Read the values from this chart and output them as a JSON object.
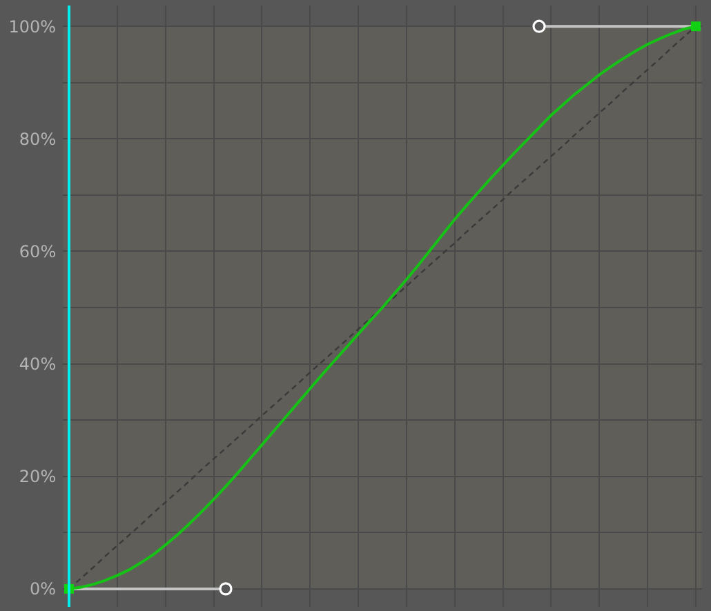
{
  "chart_data": {
    "type": "line",
    "categories": [
      null,
      null,
      null,
      null,
      null,
      null,
      null,
      null,
      null,
      null,
      null,
      null,
      null,
      null,
      null,
      null,
      null,
      null,
      null,
      null,
      null,
      null,
      null,
      null,
      null,
      null,
      null,
      null,
      null,
      null,
      null,
      null,
      null,
      null,
      null,
      null,
      null,
      null,
      null,
      null,
      null,
      null,
      null,
      null,
      null,
      null,
      null,
      null,
      null,
      null,
      null,
      null,
      null
    ],
    "ylim": [
      -3.2,
      103.7
    ],
    "yticks": [
      {
        "value": 0,
        "label": "0%"
      },
      {
        "value": 10,
        "label": null
      },
      {
        "value": 20,
        "label": "20%"
      },
      {
        "value": 30,
        "label": null
      },
      {
        "value": 40,
        "label": "40%"
      },
      {
        "value": 50,
        "label": null
      },
      {
        "value": 60,
        "label": "60%"
      },
      {
        "value": 70,
        "label": null
      },
      {
        "value": 80,
        "label": "80%"
      },
      {
        "value": 90,
        "label": null
      },
      {
        "value": 100,
        "label": "100%"
      }
    ],
    "grid": true,
    "tick_labels": "y",
    "bands": [
      {
        "axis": "y",
        "from": 0,
        "to": 100,
        "color": "#5f5e59"
      }
    ],
    "series": [
      {
        "type": "line",
        "color": "#3a3a3a",
        "line_style": "dashed",
        "values": [
          0,
          1.9,
          3.8,
          5.8,
          7.7,
          9.6,
          11.5,
          13.5,
          15.4,
          17.3,
          19.2,
          21.2,
          23.1,
          25.0,
          26.9,
          28.8,
          30.8,
          32.7,
          34.6,
          36.5,
          38.5,
          40.4,
          42.3,
          44.2,
          46.2,
          48.1,
          50.0,
          51.9,
          53.8,
          55.8,
          57.7,
          59.6,
          61.5,
          63.5,
          65.4,
          67.3,
          69.2,
          71.2,
          73.1,
          75.0,
          76.9,
          78.8,
          80.8,
          82.7,
          84.6,
          86.5,
          88.5,
          90.4,
          92.3,
          94.2,
          96.2,
          98.1,
          100
        ]
      },
      {
        "type": "line",
        "color": "#c4c4c4",
        "values": [
          0,
          0,
          0,
          0,
          0,
          0,
          0,
          0,
          0,
          0,
          0,
          0,
          0,
          0,
          null,
          null,
          null,
          null,
          null,
          null,
          null,
          null,
          null,
          null,
          null,
          null,
          null,
          null,
          null,
          null,
          null,
          null,
          null,
          null,
          null,
          null,
          null,
          null,
          null,
          null,
          null,
          null,
          null,
          null,
          null,
          null,
          null,
          null,
          null,
          null,
          null,
          null,
          null
        ]
      },
      {
        "type": "line",
        "color": "#c4c4c4",
        "values": [
          null,
          null,
          null,
          null,
          null,
          null,
          null,
          null,
          null,
          null,
          null,
          null,
          null,
          null,
          null,
          null,
          null,
          null,
          null,
          null,
          null,
          null,
          null,
          null,
          null,
          null,
          null,
          null,
          null,
          null,
          null,
          null,
          null,
          null,
          null,
          null,
          null,
          null,
          null,
          100,
          100,
          100,
          100,
          100,
          100,
          100,
          100,
          100,
          100,
          100,
          100,
          100,
          100
        ]
      },
      {
        "type": "line",
        "color": "#16c216",
        "values": [
          0,
          0.3,
          0.8,
          1.5,
          2.4,
          3.4,
          4.7,
          6.1,
          7.8,
          9.6,
          11.6,
          13.7,
          15.9,
          18.2,
          20.6,
          23.1,
          25.6,
          28.1,
          30.6,
          33.1,
          35.6,
          38.1,
          40.5,
          42.9,
          45.3,
          47.7,
          50.0,
          52.5,
          55.0,
          57.6,
          60.3,
          63.0,
          65.7,
          68.2,
          70.6,
          73.0,
          75.3,
          77.6,
          79.8,
          82.0,
          84.2,
          86.1,
          88.0,
          89.7,
          91.4,
          92.9,
          94.3,
          95.6,
          96.8,
          97.8,
          98.7,
          99.5,
          100
        ]
      },
      {
        "type": "scatter",
        "color": "#ffffff",
        "marker": "circle",
        "values": [
          null,
          null,
          null,
          null,
          null,
          null,
          null,
          null,
          null,
          null,
          null,
          null,
          null,
          0,
          null,
          null,
          null,
          null,
          null,
          null,
          null,
          null,
          null,
          null,
          null,
          null,
          null,
          null,
          null,
          null,
          null,
          null,
          null,
          null,
          null,
          null,
          null,
          null,
          null,
          100,
          null,
          null,
          null,
          null,
          null,
          null,
          null,
          null,
          null,
          null,
          null,
          null,
          null
        ]
      },
      {
        "type": "scatter",
        "color": "#12d012",
        "marker": "square",
        "values": [
          0,
          null,
          null,
          null,
          null,
          null,
          null,
          null,
          null,
          null,
          null,
          null,
          null,
          null,
          null,
          null,
          null,
          null,
          null,
          null,
          null,
          null,
          null,
          null,
          null,
          null,
          null,
          null,
          null,
          null,
          null,
          null,
          null,
          null,
          null,
          null,
          null,
          null,
          null,
          null,
          null,
          null,
          null,
          null,
          null,
          null,
          null,
          null,
          null,
          null,
          null,
          null,
          100
        ]
      }
    ]
  }
}
